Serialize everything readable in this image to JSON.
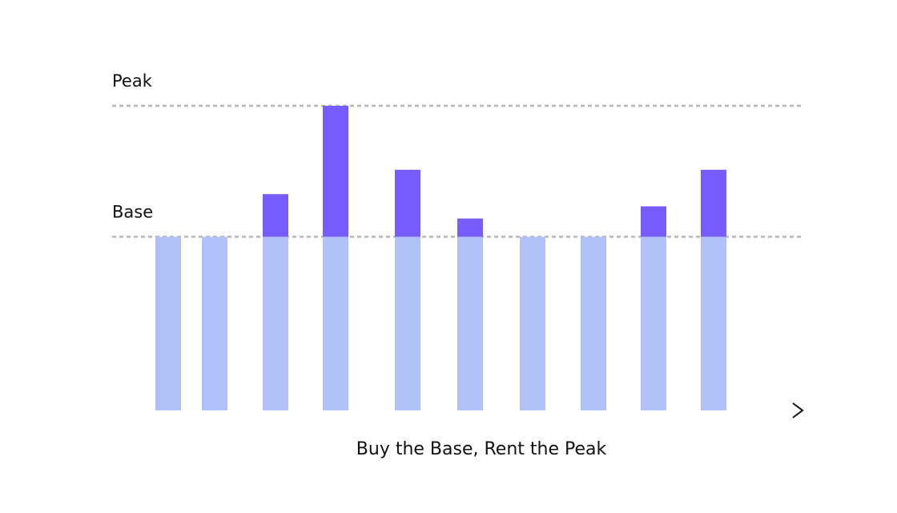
{
  "chart_data": {
    "type": "stacked-bar",
    "title": "Buy the Base, Rent the Peak",
    "categories": [
      null,
      null,
      null,
      null,
      null,
      null,
      null,
      null,
      null,
      null
    ],
    "series": [
      {
        "color": "#b0c1f7",
        "values": [
          57,
          57,
          57,
          57,
          57,
          57,
          57,
          57,
          57,
          57
        ]
      },
      {
        "color": "#775cff",
        "values": [
          0,
          0,
          14,
          43,
          22,
          6,
          0,
          0,
          10,
          22
        ]
      }
    ],
    "reference_lines": [
      {
        "label": "Peak",
        "value": 100
      },
      {
        "label": "Base",
        "value": 57
      }
    ],
    "ylim": [
      0,
      100
    ]
  }
}
